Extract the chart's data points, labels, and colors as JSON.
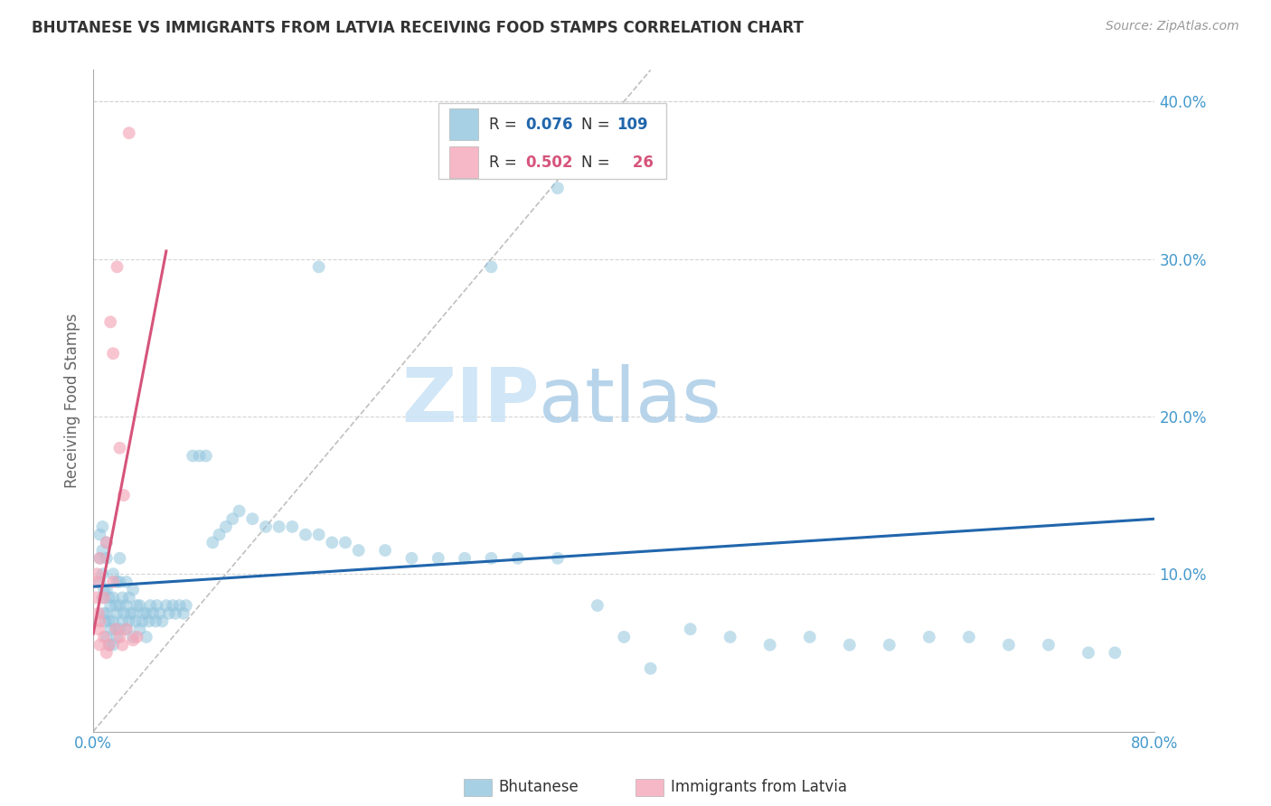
{
  "title": "BHUTANESE VS IMMIGRANTS FROM LATVIA RECEIVING FOOD STAMPS CORRELATION CHART",
  "source": "Source: ZipAtlas.com",
  "ylabel": "Receiving Food Stamps",
  "xlim": [
    0.0,
    0.8
  ],
  "ylim": [
    0.0,
    0.42
  ],
  "xticks": [
    0.0,
    0.1,
    0.2,
    0.3,
    0.4,
    0.5,
    0.6,
    0.7,
    0.8
  ],
  "yticks": [
    0.0,
    0.1,
    0.2,
    0.3,
    0.4
  ],
  "ytick_labels": [
    "",
    "10.0%",
    "20.0%",
    "30.0%",
    "40.0%"
  ],
  "xtick_labels": [
    "0.0%",
    "",
    "",
    "",
    "",
    "",
    "",
    "",
    "80.0%"
  ],
  "blue_color": "#92c5de",
  "pink_color": "#f4a6b8",
  "blue_line_color": "#2166ac",
  "pink_line_color": "#d6547a",
  "ref_line_color": "#c0c0c0",
  "legend_blue_label": "Bhutanese",
  "legend_pink_label": "Immigrants from Latvia",
  "background_color": "#ffffff",
  "grid_color": "#d5d5d5",
  "title_color": "#333333",
  "axis_label_color": "#666666",
  "tick_color": "#4499cc",
  "blue_scatter_x": [
    0.005,
    0.005,
    0.005,
    0.007,
    0.007,
    0.007,
    0.007,
    0.008,
    0.008,
    0.009,
    0.01,
    0.01,
    0.01,
    0.01,
    0.01,
    0.012,
    0.012,
    0.012,
    0.013,
    0.013,
    0.015,
    0.015,
    0.015,
    0.015,
    0.017,
    0.017,
    0.018,
    0.018,
    0.018,
    0.02,
    0.02,
    0.02,
    0.02,
    0.022,
    0.022,
    0.023,
    0.025,
    0.025,
    0.025,
    0.027,
    0.027,
    0.028,
    0.03,
    0.03,
    0.03,
    0.032,
    0.033,
    0.035,
    0.035,
    0.037,
    0.038,
    0.04,
    0.04,
    0.042,
    0.043,
    0.045,
    0.047,
    0.048,
    0.05,
    0.052,
    0.055,
    0.057,
    0.06,
    0.062,
    0.065,
    0.068,
    0.07,
    0.075,
    0.08,
    0.085,
    0.09,
    0.095,
    0.1,
    0.105,
    0.11,
    0.12,
    0.13,
    0.14,
    0.15,
    0.16,
    0.17,
    0.18,
    0.19,
    0.2,
    0.22,
    0.24,
    0.26,
    0.28,
    0.3,
    0.32,
    0.35,
    0.38,
    0.4,
    0.42,
    0.45,
    0.48,
    0.51,
    0.54,
    0.57,
    0.6,
    0.63,
    0.66,
    0.69,
    0.72,
    0.75,
    0.77,
    0.17,
    0.3,
    0.35
  ],
  "blue_scatter_y": [
    0.095,
    0.11,
    0.125,
    0.085,
    0.1,
    0.115,
    0.13,
    0.075,
    0.09,
    0.07,
    0.06,
    0.075,
    0.09,
    0.11,
    0.12,
    0.055,
    0.07,
    0.085,
    0.065,
    0.08,
    0.055,
    0.07,
    0.085,
    0.1,
    0.065,
    0.08,
    0.06,
    0.075,
    0.095,
    0.065,
    0.08,
    0.095,
    0.11,
    0.07,
    0.085,
    0.075,
    0.065,
    0.08,
    0.095,
    0.07,
    0.085,
    0.075,
    0.06,
    0.075,
    0.09,
    0.07,
    0.08,
    0.065,
    0.08,
    0.07,
    0.075,
    0.06,
    0.075,
    0.07,
    0.08,
    0.075,
    0.07,
    0.08,
    0.075,
    0.07,
    0.08,
    0.075,
    0.08,
    0.075,
    0.08,
    0.075,
    0.08,
    0.175,
    0.175,
    0.175,
    0.12,
    0.125,
    0.13,
    0.135,
    0.14,
    0.135,
    0.13,
    0.13,
    0.13,
    0.125,
    0.125,
    0.12,
    0.12,
    0.115,
    0.115,
    0.11,
    0.11,
    0.11,
    0.11,
    0.11,
    0.11,
    0.08,
    0.06,
    0.04,
    0.065,
    0.06,
    0.055,
    0.06,
    0.055,
    0.055,
    0.06,
    0.06,
    0.055,
    0.055,
    0.05,
    0.05,
    0.295,
    0.295,
    0.345
  ],
  "pink_scatter_x": [
    0.002,
    0.003,
    0.003,
    0.004,
    0.004,
    0.005,
    0.005,
    0.005,
    0.008,
    0.008,
    0.01,
    0.01,
    0.012,
    0.013,
    0.015,
    0.015,
    0.017,
    0.018,
    0.02,
    0.02,
    0.022,
    0.023,
    0.025,
    0.027,
    0.03,
    0.033
  ],
  "pink_scatter_y": [
    0.085,
    0.095,
    0.1,
    0.065,
    0.075,
    0.055,
    0.07,
    0.11,
    0.06,
    0.085,
    0.05,
    0.12,
    0.055,
    0.26,
    0.095,
    0.24,
    0.065,
    0.295,
    0.06,
    0.18,
    0.055,
    0.15,
    0.065,
    0.38,
    0.058,
    0.06
  ],
  "blue_trend_x": [
    0.0,
    0.8
  ],
  "blue_trend_y": [
    0.092,
    0.135
  ],
  "pink_trend_x": [
    0.0,
    0.055
  ],
  "pink_trend_y": [
    0.062,
    0.305
  ],
  "ref_line_x": [
    0.0,
    0.42
  ],
  "ref_line_y": [
    0.0,
    0.42
  ]
}
